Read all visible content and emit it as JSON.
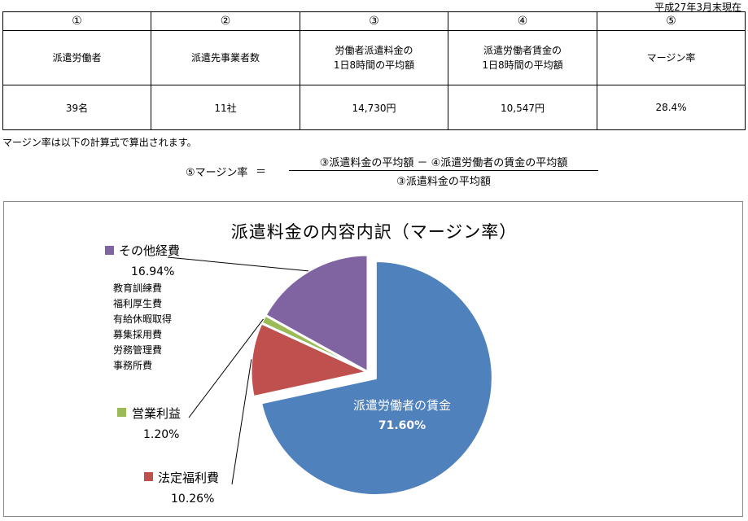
{
  "as_of": "平成27年3月末現在",
  "summary": {
    "numbers": [
      "①",
      "②",
      "③",
      "④",
      "⑤"
    ],
    "headers": [
      [
        "派遣労働者"
      ],
      [
        "派遣先事業者数"
      ],
      [
        "労働者派遣料金の",
        "1日8時間の平均額"
      ],
      [
        "派遣労働者賃金の",
        "1日8時間の平均額"
      ],
      [
        "マージン率"
      ]
    ],
    "values": [
      "39名",
      "11社",
      "14,730円",
      "10,547円",
      "28.4%"
    ]
  },
  "note": "マージン率は以下の計算式で算出されます。",
  "formula": {
    "label": "⑤マージン率",
    "equals": "＝",
    "numerator": "③派遣料金の平均額 － ④派遣労働者の賃金の平均額",
    "denominator": "③派遣料金の平均額"
  },
  "chart_data": {
    "type": "pie",
    "title": "派遣料金の内容内訳（マージン率）",
    "slices": [
      {
        "name": "派遣労働者の賃金",
        "label": "71.60%",
        "value": 71.6,
        "color": "#4f81bd"
      },
      {
        "name": "法定福利費",
        "label": "10.26%",
        "value": 10.26,
        "color": "#c0504d"
      },
      {
        "name": "営業利益",
        "label": "1.20%",
        "value": 1.2,
        "color": "#9bbb59"
      },
      {
        "name": "その他経費",
        "label": "16.94%",
        "value": 16.94,
        "color": "#8064a2"
      }
    ],
    "other_breakdown": [
      "教育訓練費",
      "福利厚生費",
      "有給休暇取得",
      "募集採用費",
      "労務管理費",
      "事務所費"
    ]
  }
}
